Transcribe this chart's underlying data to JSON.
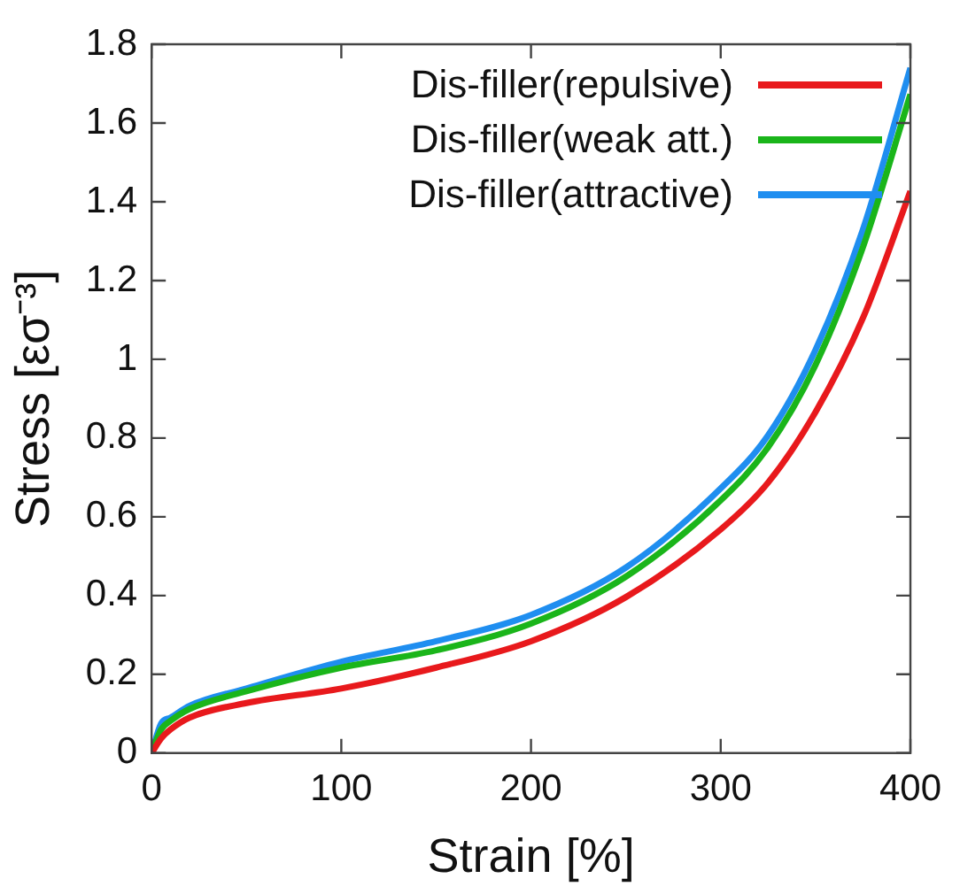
{
  "chart_data": {
    "type": "line",
    "xlabel": "Strain [%]",
    "ylabel": "Stress [εσ⁻³]",
    "x": [
      0,
      5,
      10,
      20,
      50,
      100,
      150,
      200,
      250,
      300,
      325,
      350,
      375,
      400
    ],
    "series": [
      {
        "name": "Dis-filler(repulsive)",
        "color": "#e8191c",
        "values": [
          0,
          0.037,
          0.06,
          0.09,
          0.127,
          0.164,
          0.217,
          0.284,
          0.396,
          0.568,
          0.687,
          0.866,
          1.105,
          1.427
        ]
      },
      {
        "name": "Dis-filler(weak att.)",
        "color": "#1ab51a",
        "values": [
          0,
          0.06,
          0.082,
          0.112,
          0.157,
          0.217,
          0.261,
          0.329,
          0.448,
          0.642,
          0.777,
          0.986,
          1.285,
          1.673
        ]
      },
      {
        "name": "Dis-filler(attractive)",
        "color": "#1f8ef0",
        "values": [
          0,
          0.075,
          0.09,
          0.12,
          0.164,
          0.232,
          0.284,
          0.351,
          0.471,
          0.672,
          0.807,
          1.024,
          1.33,
          1.74
        ]
      }
    ],
    "xlim": [
      0,
      400
    ],
    "xticks": [
      0,
      100,
      200,
      300,
      400
    ],
    "ylim": [
      0,
      1.8
    ],
    "yticks": [
      0,
      0.2,
      0.4,
      0.6,
      0.8,
      1,
      1.2,
      1.4,
      1.6,
      1.8
    ],
    "grid": false,
    "legend": "top right",
    "marker": "none",
    "line_style": "solid"
  }
}
